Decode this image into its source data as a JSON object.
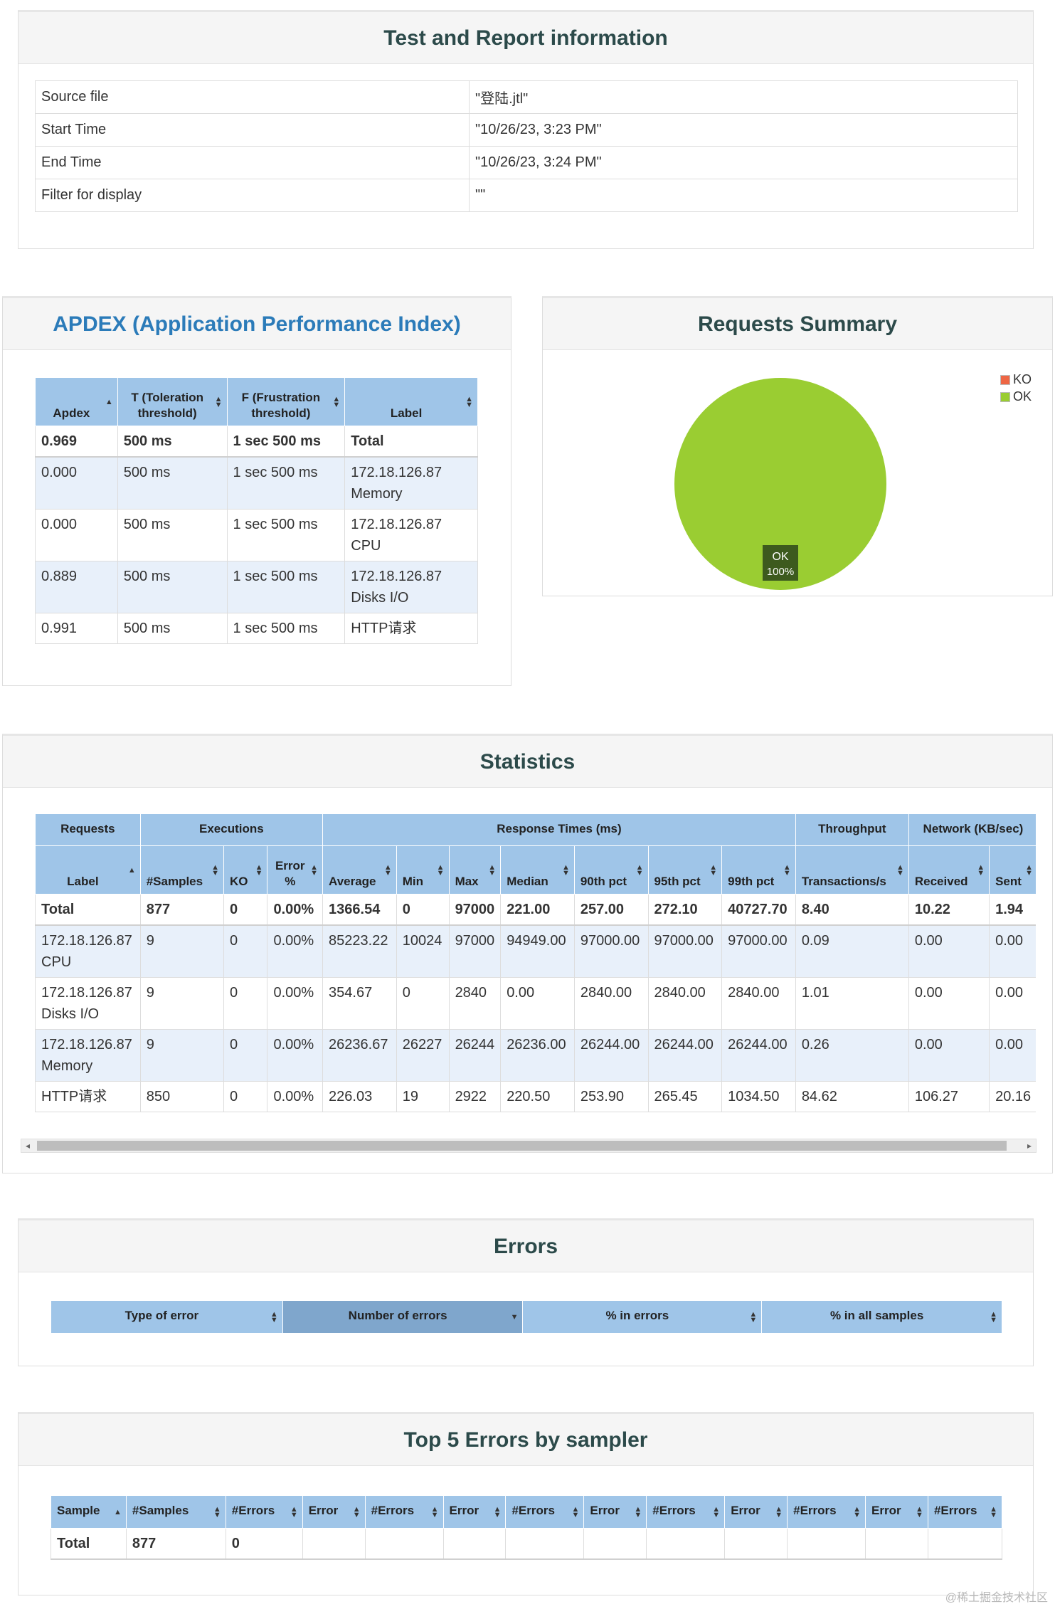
{
  "report_info": {
    "title": "Test and Report information",
    "rows": [
      {
        "label": "Source file",
        "value": "\"登陆.jtl\""
      },
      {
        "label": "Start Time",
        "value": "\"10/26/23, 3:23 PM\""
      },
      {
        "label": "End Time",
        "value": "\"10/26/23, 3:24 PM\""
      },
      {
        "label": "Filter for display",
        "value": "\"\""
      }
    ]
  },
  "apdex": {
    "title": "APDEX (Application Performance Index)",
    "headers": [
      "Apdex",
      "T (Toleration threshold)",
      "F (Frustration threshold)",
      "Label"
    ],
    "total": [
      "0.969",
      "500 ms",
      "1 sec 500 ms",
      "Total"
    ],
    "rows": [
      [
        "0.000",
        "500 ms",
        "1 sec 500 ms",
        "172.18.126.87 Memory"
      ],
      [
        "0.000",
        "500 ms",
        "1 sec 500 ms",
        "172.18.126.87 CPU"
      ],
      [
        "0.889",
        "500 ms",
        "1 sec 500 ms",
        "172.18.126.87 Disks I/O"
      ],
      [
        "0.991",
        "500 ms",
        "1 sec 500 ms",
        "HTTP请求"
      ]
    ]
  },
  "requests_summary": {
    "title": "Requests Summary",
    "legend": [
      "KO",
      "OK"
    ],
    "chart_data": {
      "type": "pie",
      "labels": [
        "KO",
        "OK"
      ],
      "values": [
        0,
        100
      ],
      "data_labels": [
        {
          "name": "OK",
          "value": "100%"
        }
      ]
    },
    "colors": {
      "KO": "#ee6644",
      "OK": "#9acd32"
    }
  },
  "statistics": {
    "title": "Statistics",
    "groups": [
      "Requests",
      "Executions",
      "Response Times (ms)",
      "Throughput",
      "Network (KB/sec)"
    ],
    "headers": [
      "Label",
      "#Samples",
      "KO",
      "Error %",
      "Average",
      "Min",
      "Max",
      "Median",
      "90th pct",
      "95th pct",
      "99th pct",
      "Transactions/s",
      "Received",
      "Sent"
    ],
    "total": [
      "Total",
      "877",
      "0",
      "0.00%",
      "1366.54",
      "0",
      "97000",
      "221.00",
      "257.00",
      "272.10",
      "40727.70",
      "8.40",
      "10.22",
      "1.94"
    ],
    "rows": [
      [
        "172.18.126.87 CPU",
        "9",
        "0",
        "0.00%",
        "85223.22",
        "10024",
        "97000",
        "94949.00",
        "97000.00",
        "97000.00",
        "97000.00",
        "0.09",
        "0.00",
        "0.00"
      ],
      [
        "172.18.126.87 Disks I/O",
        "9",
        "0",
        "0.00%",
        "354.67",
        "0",
        "2840",
        "0.00",
        "2840.00",
        "2840.00",
        "2840.00",
        "1.01",
        "0.00",
        "0.00"
      ],
      [
        "172.18.126.87 Memory",
        "9",
        "0",
        "0.00%",
        "26236.67",
        "26227",
        "26244",
        "26236.00",
        "26244.00",
        "26244.00",
        "26244.00",
        "0.26",
        "0.00",
        "0.00"
      ],
      [
        "HTTP请求",
        "850",
        "0",
        "0.00%",
        "226.03",
        "19",
        "2922",
        "220.50",
        "253.90",
        "265.45",
        "1034.50",
        "84.62",
        "106.27",
        "20.16"
      ]
    ]
  },
  "errors": {
    "title": "Errors",
    "headers": [
      "Type of error",
      "Number of errors",
      "% in errors",
      "% in all samples"
    ]
  },
  "top5": {
    "title": "Top 5 Errors by sampler",
    "headers": [
      "Sample",
      "#Samples",
      "#Errors",
      "Error",
      "#Errors",
      "Error",
      "#Errors",
      "Error",
      "#Errors",
      "Error",
      "#Errors",
      "Error",
      "#Errors"
    ],
    "total": [
      "Total",
      "877",
      "0",
      "",
      "",
      "",
      "",
      "",
      "",
      "",
      "",
      "",
      ""
    ]
  },
  "watermark": "@稀土掘金技术社区"
}
